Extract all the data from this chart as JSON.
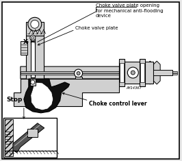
{
  "background_color": "#e8e8e8",
  "border_color": "#000000",
  "labels": {
    "choke_opening": "Choke valve plate opening\nfor mechanical anti-flooding\ndevice",
    "choke_plate": "Choke valve plate",
    "choke_lever": "Choke control lever",
    "stop": "Stop",
    "x_label": "X",
    "part_number": "AH14367"
  },
  "colors": {
    "black": "#000000",
    "white": "#ffffff",
    "light_gray": "#d0d0d0",
    "mid_gray": "#aaaaaa",
    "dark_gray": "#555555",
    "fill_black": "#111111",
    "bg": "#e8e8e8"
  }
}
